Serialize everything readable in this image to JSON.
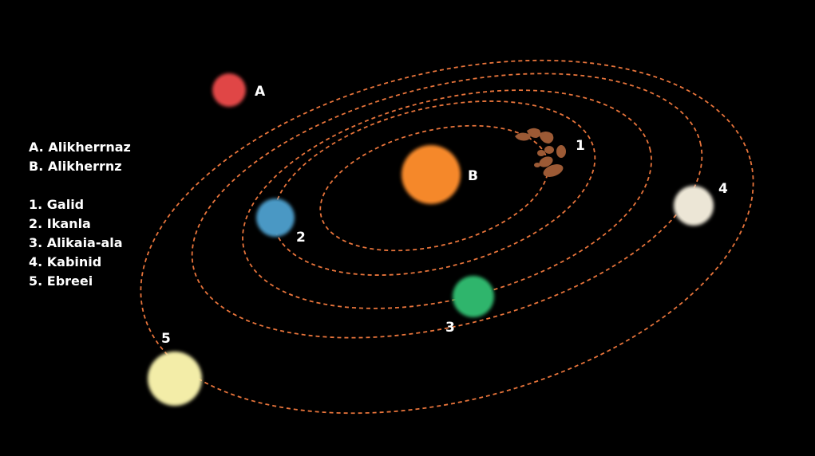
{
  "colors": {
    "background": "#000000",
    "orbit": "#e8743b",
    "text": "#ffffff"
  },
  "legend": {
    "stars": [
      "A. Alikherrnaz",
      "B. Alikherrnz"
    ],
    "planets": [
      "1. Galid",
      "2. Ikanla",
      "3. Alikaia-ala",
      "4. Kabinid",
      "5. Ebreei"
    ]
  },
  "bodies": {
    "star_a": {
      "label": "A",
      "color": "#e04646"
    },
    "star_b": {
      "label": "B",
      "color": "#f5882a"
    },
    "planet_1": {
      "label": "1",
      "color": "#9c5a35",
      "icon": "asteroid-cluster"
    },
    "planet_2": {
      "label": "2",
      "color": "#4a98c4"
    },
    "planet_3": {
      "label": "3",
      "color": "#2fb56c"
    },
    "planet_4": {
      "label": "4",
      "color": "#ece6d6"
    },
    "planet_5": {
      "label": "5",
      "color": "#f3eda8"
    }
  }
}
